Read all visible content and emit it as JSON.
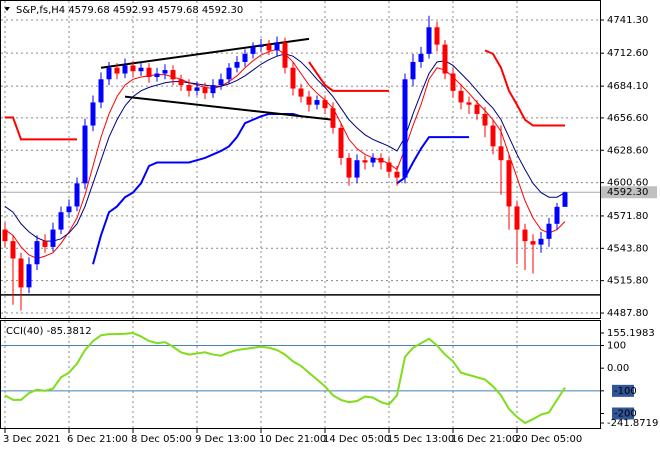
{
  "chart_data": [
    {
      "type": "candlestick",
      "title": "S&P,fs,H4  4579.68 4592.93 4579.68 4592.30",
      "up_color": "#0000ff",
      "down_color": "#ff0000",
      "open": [
        4560,
        4550,
        4535,
        4510,
        4530,
        4550,
        4545,
        4560,
        4575,
        4580,
        4600,
        4650,
        4670,
        4690,
        4700,
        4695,
        4702,
        4697,
        4700,
        4692,
        4695,
        4698,
        4690,
        4685,
        4680,
        4683,
        4678,
        4685,
        4690,
        4700,
        4705,
        4712,
        4718,
        4720,
        4715,
        4722,
        4700,
        4682,
        4675,
        4668,
        4672,
        4665,
        4648,
        4622,
        4605,
        4620,
        4618,
        4622,
        4618,
        4610,
        4605,
        4690,
        4705,
        4712,
        4735,
        4720,
        4695,
        4680,
        4670,
        4668,
        4660,
        4650,
        4632,
        4620,
        4580,
        4560,
        4550,
        4547,
        4552,
        4565,
        4579.68
      ],
      "high": [
        4566,
        4555,
        4540,
        4536,
        4555,
        4556,
        4566,
        4580,
        4586,
        4605,
        4656,
        4676,
        4696,
        4705,
        4704,
        4708,
        4706,
        4705,
        4704,
        4700,
        4703,
        4702,
        4694,
        4690,
        4688,
        4687,
        4690,
        4695,
        4704,
        4710,
        4716,
        4722,
        4725,
        4724,
        4727,
        4726,
        4705,
        4686,
        4680,
        4676,
        4676,
        4670,
        4652,
        4626,
        4625,
        4624,
        4626,
        4626,
        4622,
        4615,
        4695,
        4712,
        4718,
        4745,
        4740,
        4724,
        4700,
        4686,
        4675,
        4672,
        4666,
        4655,
        4650,
        4625,
        4585,
        4565,
        4556,
        4558,
        4570,
        4583,
        4592.93
      ],
      "low": [
        4545,
        4495,
        4490,
        4505,
        4525,
        4540,
        4541,
        4556,
        4570,
        4576,
        4595,
        4645,
        4665,
        4685,
        4690,
        4691,
        4692,
        4693,
        4687,
        4688,
        4690,
        4685,
        4680,
        4675,
        4676,
        4673,
        4674,
        4681,
        4686,
        4696,
        4701,
        4708,
        4714,
        4711,
        4710,
        4695,
        4676,
        4670,
        4662,
        4664,
        4660,
        4643,
        4616,
        4598,
        4600,
        4612,
        4614,
        4612,
        4605,
        4598,
        4600,
        4684,
        4700,
        4708,
        4714,
        4690,
        4674,
        4664,
        4660,
        4655,
        4640,
        4625,
        4590,
        4560,
        4530,
        4525,
        4522,
        4540,
        4545,
        4560,
        4579.68
      ],
      "close": [
        4550,
        4535,
        4510,
        4530,
        4550,
        4545,
        4560,
        4575,
        4580,
        4600,
        4650,
        4670,
        4690,
        4700,
        4695,
        4702,
        4697,
        4700,
        4692,
        4695,
        4698,
        4690,
        4685,
        4680,
        4683,
        4678,
        4685,
        4690,
        4700,
        4705,
        4712,
        4718,
        4720,
        4715,
        4722,
        4700,
        4682,
        4675,
        4668,
        4672,
        4665,
        4648,
        4622,
        4605,
        4620,
        4618,
        4622,
        4618,
        4610,
        4605,
        4690,
        4705,
        4712,
        4735,
        4720,
        4695,
        4680,
        4670,
        4668,
        4660,
        4650,
        4632,
        4620,
        4580,
        4560,
        4550,
        4547,
        4552,
        4565,
        4579.68,
        4592.3
      ],
      "lines": [
        {
          "color": "#ff0000",
          "width": 1,
          "values": [
            4560,
            4555,
            4545,
            4538,
            4535,
            4537,
            4540,
            4548,
            4558,
            4570,
            4590,
            4615,
            4640,
            4660,
            4675,
            4685,
            4690,
            4692,
            4693,
            4694,
            4694,
            4692,
            4690,
            4687,
            4685,
            4683,
            4682,
            4684,
            4688,
            4693,
            4700,
            4706,
            4711,
            4714,
            4716,
            4712,
            4705,
            4695,
            4685,
            4678,
            4672,
            4665,
            4652,
            4638,
            4630,
            4625,
            4622,
            4620,
            4617,
            4612,
            4630,
            4650,
            4668,
            4690,
            4700,
            4698,
            4692,
            4685,
            4678,
            4670,
            4663,
            4655,
            4645,
            4625,
            4605,
            4585,
            4570,
            4560,
            4557,
            4560,
            4567
          ]
        },
        {
          "color": "#000080",
          "width": 1,
          "values": [
            4580,
            4575,
            4565,
            4558,
            4553,
            4550,
            4550,
            4552,
            4557,
            4565,
            4580,
            4600,
            4620,
            4640,
            4655,
            4667,
            4675,
            4680,
            4683,
            4685,
            4687,
            4688,
            4688,
            4687,
            4686,
            4685,
            4684,
            4684,
            4686,
            4689,
            4693,
            4698,
            4703,
            4707,
            4710,
            4712,
            4710,
            4705,
            4698,
            4690,
            4683,
            4675,
            4665,
            4655,
            4648,
            4642,
            4638,
            4635,
            4632,
            4628,
            4640,
            4660,
            4678,
            4695,
            4705,
            4706,
            4702,
            4695,
            4688,
            4680,
            4672,
            4665,
            4655,
            4640,
            4625,
            4612,
            4600,
            4592,
            4588,
            4588,
            4592
          ]
        },
        {
          "color": "#ff0000",
          "width": 2,
          "values": [
            4657,
            4657,
            4638,
            4638,
            4638,
            4638,
            4638,
            4638,
            4638,
            4638,
            null,
            null,
            null,
            null,
            null,
            null,
            null,
            null,
            null,
            null,
            null,
            null,
            null,
            null,
            null,
            null,
            null,
            null,
            null,
            null,
            null,
            null,
            null,
            null,
            null,
            null,
            null,
            null,
            4705,
            4695,
            4685,
            4680,
            4680,
            4680,
            4680,
            4680,
            4680,
            4680,
            4680,
            null,
            null,
            null,
            null,
            null,
            null,
            null,
            null,
            null,
            null,
            null,
            4715,
            4712,
            4700,
            4680,
            4668,
            4655,
            4650,
            4650,
            4650,
            4650,
            4650
          ]
        },
        {
          "color": "#0000ff",
          "width": 2,
          "values": [
            null,
            null,
            null,
            null,
            null,
            null,
            null,
            null,
            null,
            null,
            null,
            4530,
            4555,
            4575,
            4580,
            4588,
            4592,
            4600,
            4615,
            4618,
            4618,
            4618,
            4618,
            4618,
            4620,
            4622,
            4625,
            4628,
            4632,
            4640,
            4652,
            4655,
            4658,
            4660,
            4660,
            4660,
            4660,
            4658,
            null,
            null,
            null,
            null,
            null,
            null,
            null,
            null,
            null,
            null,
            null,
            4600,
            4605,
            4618,
            4630,
            4640,
            4640,
            4640,
            4640,
            4640,
            4640,
            null,
            null,
            null,
            null,
            null,
            null,
            null,
            null,
            null,
            null,
            null,
            null
          ]
        }
      ],
      "trendlines": [
        {
          "x": [
            12,
            38
          ],
          "y": [
            4700,
            4725
          ]
        },
        {
          "x": [
            15,
            41
          ],
          "y": [
            4675,
            4655
          ]
        }
      ],
      "level": 4503.5,
      "price_label": {
        "value": 4592.3,
        "label": "4592.30"
      },
      "ylim": [
        4483.5,
        4756.0
      ],
      "yticks": [
        {
          "value": 4741.3,
          "label": "4741.30"
        },
        {
          "value": 4712.6,
          "label": "4712.60"
        },
        {
          "value": 4684.1,
          "label": "4684.10"
        },
        {
          "value": 4656.6,
          "label": "4656.60"
        },
        {
          "value": 4628.6,
          "label": "4628.60"
        },
        {
          "value": 4600.6,
          "label": "4600.60"
        },
        {
          "value": 4571.8,
          "label": "4571.80"
        },
        {
          "value": 4543.8,
          "label": "4543.80"
        },
        {
          "value": 4515.8,
          "label": "4515.80"
        },
        {
          "value": 4487.8,
          "label": "4487.80"
        }
      ],
      "xticks": [
        {
          "value": 0,
          "label": "3 Dec 2021"
        },
        {
          "value": 8,
          "label": "6 Dec 21:00"
        },
        {
          "value": 16,
          "label": "8 Dec 05:00"
        },
        {
          "value": 24,
          "label": "9 Dec 13:00"
        },
        {
          "value": 32,
          "label": "10 Dec 21:00"
        },
        {
          "value": 40,
          "label": "14 Dec 05:00"
        },
        {
          "value": 48,
          "label": "15 Dec 13:00"
        },
        {
          "value": 56,
          "label": "16 Dec 21:00"
        },
        {
          "value": 64,
          "label": "20 Dec 05:00"
        }
      ]
    },
    {
      "type": "line",
      "title": "CCI(40) -85.3812",
      "color": "#7fdd1a",
      "values": [
        -120,
        -140,
        -140,
        -110,
        -95,
        -100,
        -90,
        -40,
        -20,
        20,
        80,
        120,
        145,
        150,
        150,
        152,
        155,
        140,
        120,
        110,
        115,
        95,
        70,
        60,
        65,
        70,
        60,
        55,
        70,
        80,
        85,
        90,
        95,
        90,
        80,
        60,
        30,
        10,
        -20,
        -50,
        -80,
        -120,
        -140,
        -150,
        -145,
        -125,
        -130,
        -150,
        -160,
        -120,
        50,
        90,
        110,
        130,
        100,
        60,
        30,
        -20,
        -30,
        -40,
        -50,
        -80,
        -120,
        -180,
        -215,
        -241.87,
        -225,
        -205,
        -195,
        -140,
        -85.38
      ],
      "levels": [
        100,
        -100
      ],
      "ylim": [
        -241.8719,
        155.1983
      ],
      "yticks": [
        155.1983,
        100,
        {
          "value": 0,
          "label": "0.00"
        },
        -100,
        -200,
        -241.8719
      ]
    }
  ]
}
